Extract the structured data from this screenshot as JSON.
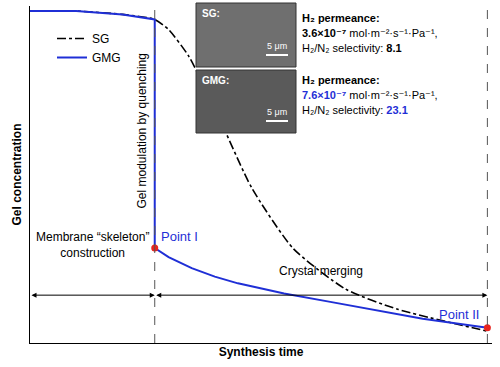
{
  "chart_data": {
    "type": "line",
    "x_label": "Synthesis time",
    "y_label": "Gel concentration",
    "xlim": [
      0,
      10
    ],
    "ylim": [
      0,
      10
    ],
    "xticks": [],
    "yticks": [],
    "tick_labels": false,
    "grid": false,
    "legend": "upper left",
    "series": [
      {
        "name": "SG",
        "color": "#000000",
        "line_style": "dashdot",
        "x": [
          0,
          1,
          2,
          2.7,
          3.0,
          3.44,
          4.12,
          4.8,
          5.7,
          6.83,
          7.96,
          9.9
        ],
        "values": [
          9.85,
          9.85,
          9.75,
          9.6,
          9.3,
          8.5,
          6.6,
          4.6,
          2.8,
          1.6,
          1.0,
          0.35
        ]
      },
      {
        "name": "GMG",
        "color": "#1f2fd6",
        "line_style": "solid",
        "x": [
          0,
          1,
          2,
          2.7,
          2.7,
          3.0,
          3.5,
          4.0,
          4.5,
          5.5,
          6.5,
          7.5,
          8.5,
          9.9
        ],
        "values": [
          9.85,
          9.85,
          9.75,
          9.6,
          2.82,
          2.55,
          2.22,
          1.97,
          1.77,
          1.47,
          1.22,
          0.97,
          0.72,
          0.45
        ]
      }
    ],
    "vertical_lines": [
      2.7,
      9.9
    ],
    "points": [
      {
        "label": "Point I",
        "x": 2.7,
        "y": 2.82,
        "color": "#e8251f",
        "label_color": "#1f2fd6"
      },
      {
        "label": "Point II",
        "x": 9.9,
        "y": 0.45,
        "color": "#e8251f",
        "label_color": "#1f2fd6"
      }
    ],
    "phases": [
      {
        "label": [
          "Membrane “skeleton”",
          "construction"
        ],
        "from": 0,
        "to": 2.7
      },
      {
        "label": [
          "Crystal merging"
        ],
        "from": 2.7,
        "to": 9.9
      }
    ],
    "transition_label": "Gel modulation by quenching",
    "inset": {
      "panels": [
        {
          "label": "SG:",
          "scale_bar": "5 μm"
        },
        {
          "label": "GMG:",
          "scale_bar": "5 μm"
        }
      ],
      "results": [
        {
          "sample": "SG",
          "color": "#000000",
          "permeance_label": "H₂ permeance:",
          "permeance": "3.6×10⁻⁷",
          "permeance_unit": "mol·m⁻²·s⁻¹·Pa⁻¹,",
          "selectivity_label": "H₂/N₂ selectivity:",
          "selectivity": 8.1
        },
        {
          "sample": "GMG",
          "color": "#1f2fd6",
          "permeance_label": "H₂ permeance:",
          "permeance": "7.6×10⁻⁷",
          "permeance_unit": "mol·m⁻²·s⁻¹·Pa⁻¹,",
          "selectivity_label": "H₂/N₂ selectivity:",
          "selectivity": 23.1
        }
      ]
    }
  }
}
